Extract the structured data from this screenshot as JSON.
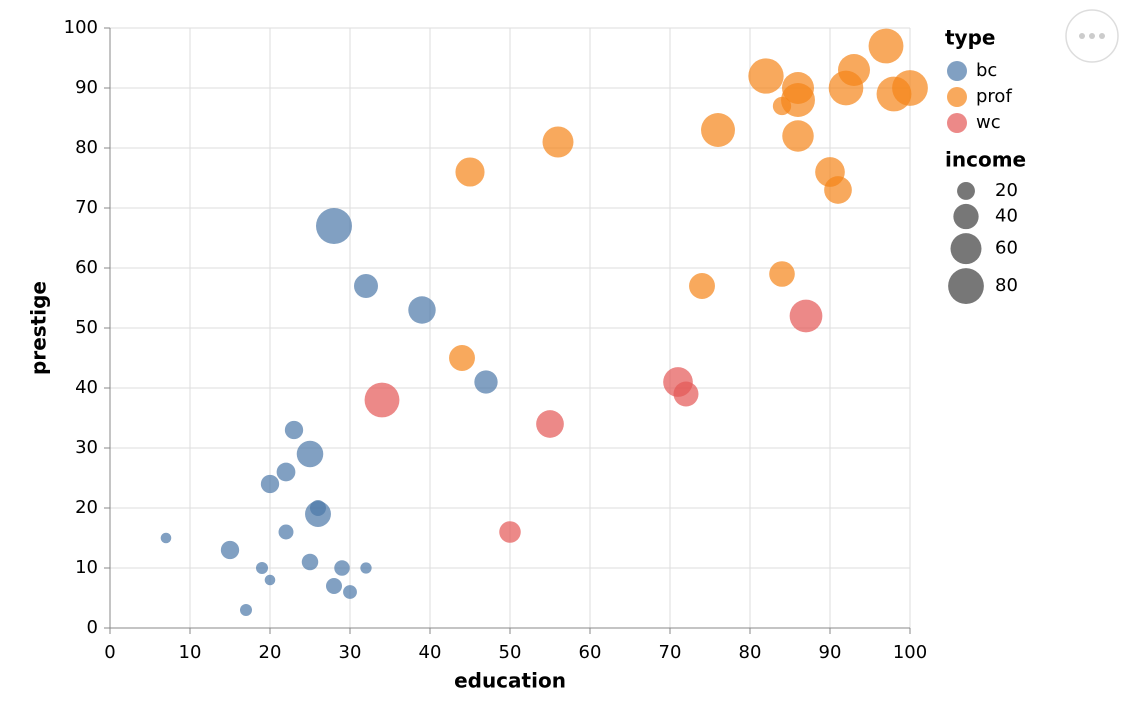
{
  "chart_data": {
    "type": "bubble",
    "x_label": "education",
    "y_label": "prestige",
    "xlim": [
      0,
      100
    ],
    "xticks": [
      0,
      10,
      20,
      30,
      40,
      50,
      60,
      70,
      80,
      90,
      100
    ],
    "ylim": [
      0,
      100
    ],
    "yticks": [
      0,
      10,
      20,
      30,
      40,
      50,
      60,
      70,
      80,
      90,
      100
    ],
    "grid": true,
    "legend_title": "type",
    "size_legend": {
      "title": "income",
      "values": [
        20,
        40,
        60,
        80
      ]
    },
    "series": [
      {
        "name": "bc",
        "color": "#4c78a8",
        "x": [
          7,
          15,
          17,
          19,
          20,
          22,
          30,
          32,
          25,
          28,
          26,
          26,
          47,
          32,
          23,
          25,
          39,
          28,
          20,
          22,
          29
        ],
        "values": [
          15,
          13,
          3,
          10,
          8,
          16,
          6,
          10,
          11,
          7,
          20,
          19,
          41,
          57,
          33,
          29,
          53,
          67,
          24,
          26,
          10
        ],
        "sizes": [
          7,
          21,
          9,
          9,
          7,
          14,
          12,
          8,
          17,
          16,
          16,
          42,
          34,
          36,
          21,
          44,
          47,
          81,
          21,
          22,
          15
        ]
      },
      {
        "name": "prof",
        "color": "#f58518",
        "x": [
          97,
          100,
          98,
          93,
          92,
          82,
          86,
          86,
          84,
          76,
          86,
          90,
          91,
          56,
          45,
          74,
          84,
          44
        ],
        "values": [
          97,
          90,
          89,
          93,
          90,
          92,
          90,
          88,
          87,
          83,
          82,
          76,
          73,
          81,
          76,
          57,
          59,
          45
        ],
        "sizes": [
          76,
          80,
          76,
          64,
          75,
          78,
          64,
          72,
          21,
          72,
          62,
          55,
          48,
          60,
          53,
          42,
          41,
          42
        ]
      },
      {
        "name": "wc",
        "color": "#e45756",
        "x": [
          34,
          50,
          55,
          71,
          72,
          87
        ],
        "values": [
          38,
          16,
          34,
          41,
          39,
          52
        ],
        "sizes": [
          76,
          29,
          48,
          55,
          39,
          67
        ]
      }
    ]
  }
}
